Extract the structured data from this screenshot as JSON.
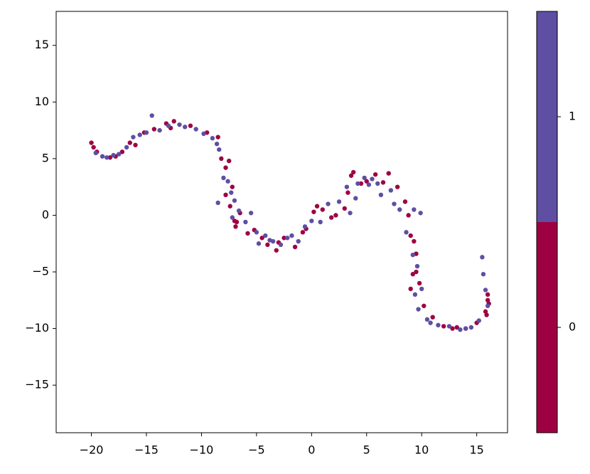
{
  "chart_data": {
    "type": "scatter",
    "xlim": [
      -23.2,
      17.8
    ],
    "ylim": [
      -19.2,
      18.0
    ],
    "xticks": [
      {
        "value": -20,
        "label": "−20"
      },
      {
        "value": -15,
        "label": "−15"
      },
      {
        "value": -10,
        "label": "−10"
      },
      {
        "value": -5,
        "label": "−5"
      },
      0,
      5,
      10,
      15
    ],
    "yticks": [
      {
        "value": -15,
        "label": "−15"
      },
      {
        "value": -10,
        "label": "−10"
      },
      {
        "value": -5,
        "label": "−5"
      },
      0,
      5,
      10,
      15
    ],
    "series": [
      {
        "color": "#9e0142",
        "x": [
          -20.0,
          -19.8,
          -19.5,
          -18.3,
          -17.8,
          -17.2,
          -16.5,
          -16.0,
          -15.2,
          -14.3,
          -13.2,
          -12.8,
          -12.5,
          -11.0,
          -9.5,
          -8.5,
          -8.2,
          -7.8,
          -7.5,
          -7.2,
          -7.8,
          -7.4,
          -7.0,
          -6.8,
          -6.5,
          -6.9,
          -5.8,
          -5.2,
          -4.5,
          -4.0,
          -3.2,
          -3.0,
          -2.5,
          -1.5,
          -0.8,
          -0.5,
          0.2,
          0.5,
          1.0,
          1.8,
          2.2,
          3.0,
          3.3,
          3.6,
          3.8,
          4.5,
          5.0,
          5.8,
          6.5,
          7.0,
          7.8,
          8.5,
          8.8,
          9.0,
          9.3,
          9.5,
          9.2,
          9.0,
          9.5,
          9.8,
          10.2,
          11.0,
          12.0,
          12.8,
          13.2,
          14.0,
          15.0,
          15.8,
          16.0,
          16.1,
          15.9,
          16.0
        ],
        "y": [
          6.4,
          6.0,
          5.6,
          5.1,
          5.2,
          5.6,
          6.4,
          6.2,
          7.3,
          7.6,
          8.1,
          7.7,
          8.3,
          7.9,
          7.3,
          6.9,
          5.0,
          4.2,
          4.8,
          2.5,
          1.8,
          0.8,
          -0.5,
          -0.6,
          0.2,
          -1.0,
          -1.6,
          -1.3,
          -2.0,
          -2.6,
          -3.1,
          -2.4,
          -2.0,
          -2.8,
          -1.5,
          -1.2,
          0.3,
          0.8,
          0.5,
          -0.2,
          0.0,
          0.6,
          2.0,
          3.5,
          3.8,
          2.8,
          3.0,
          3.6,
          2.9,
          3.7,
          2.5,
          1.2,
          0.0,
          -1.8,
          -2.3,
          -3.4,
          -5.2,
          -6.5,
          -5.0,
          -6.0,
          -8.0,
          -9.0,
          -9.8,
          -10.0,
          -9.9,
          -10.0,
          -9.5,
          -8.5,
          -7.5,
          -7.8,
          -8.8,
          -7.0
        ]
      },
      {
        "color": "#5e4fa2",
        "x": [
          -19.6,
          -19.0,
          -18.6,
          -18.0,
          -17.5,
          -16.8,
          -16.2,
          -15.6,
          -15.0,
          -14.5,
          -13.8,
          -13.0,
          -12.0,
          -11.5,
          -10.5,
          -9.8,
          -9.0,
          -8.6,
          -8.4,
          -8.0,
          -7.6,
          -7.3,
          -7.0,
          -8.5,
          -7.2,
          -6.6,
          -6.0,
          -5.5,
          -5.0,
          -4.8,
          -4.2,
          -3.8,
          -3.5,
          -2.8,
          -2.2,
          -1.8,
          -1.2,
          -0.6,
          0.0,
          0.8,
          1.5,
          2.5,
          3.2,
          3.5,
          4.0,
          4.2,
          4.8,
          5.2,
          5.5,
          6.0,
          6.3,
          7.2,
          7.5,
          8.0,
          8.6,
          9.2,
          9.6,
          10.0,
          9.4,
          9.7,
          9.3,
          10.5,
          10.8,
          11.5,
          12.5,
          13.5,
          14.0,
          14.5,
          15.2,
          15.5,
          15.6,
          15.8,
          16.0,
          9.9
        ],
        "y": [
          5.5,
          5.2,
          5.1,
          5.3,
          5.4,
          6.0,
          6.9,
          7.1,
          7.3,
          8.8,
          7.5,
          7.9,
          8.0,
          7.8,
          7.6,
          7.2,
          6.8,
          6.3,
          5.8,
          3.3,
          3.0,
          2.0,
          1.3,
          1.1,
          -0.2,
          0.4,
          -0.6,
          0.2,
          -1.5,
          -2.5,
          -1.8,
          -2.2,
          -2.3,
          -2.6,
          -2.0,
          -1.8,
          -2.3,
          -1.0,
          -0.5,
          -0.6,
          1.0,
          1.2,
          2.5,
          0.2,
          1.5,
          2.8,
          3.3,
          2.7,
          3.2,
          2.8,
          1.8,
          2.2,
          1.0,
          0.5,
          -1.5,
          -3.5,
          -4.5,
          -6.5,
          -7.0,
          -8.3,
          0.5,
          -9.2,
          -9.5,
          -9.7,
          -9.8,
          -10.1,
          -10.0,
          -9.9,
          -9.3,
          -3.7,
          -5.2,
          -6.6,
          -8.0,
          0.2
        ]
      }
    ],
    "colorbar": {
      "lim": [
        -0.5,
        1.5
      ],
      "ticks": [
        0,
        1
      ],
      "colors": [
        "#9e0142",
        "#5e4fa2"
      ]
    }
  }
}
